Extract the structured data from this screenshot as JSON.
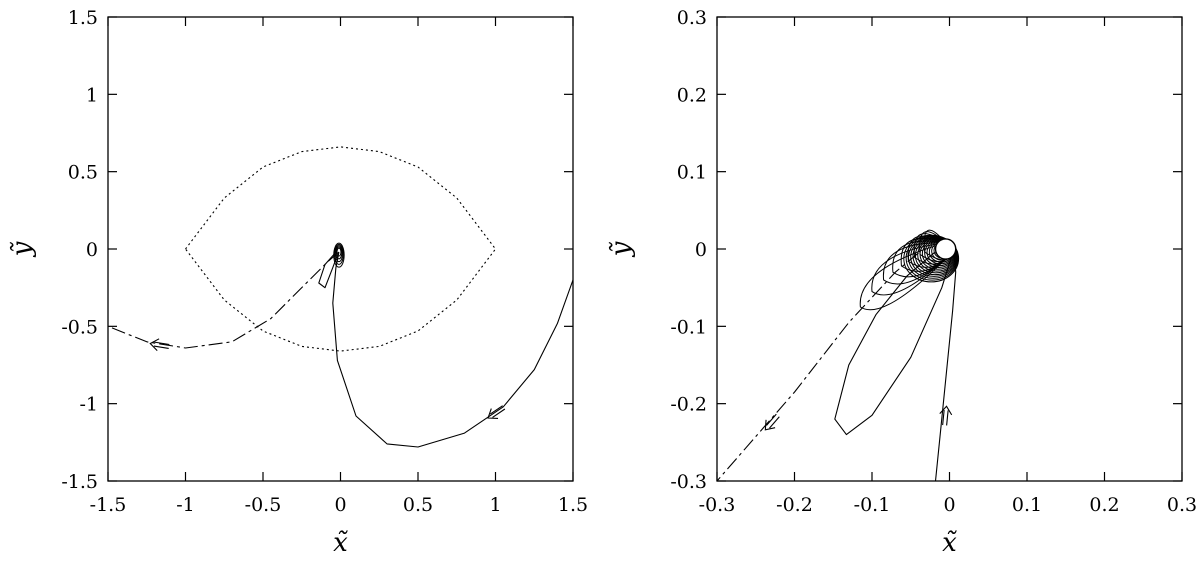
{
  "chart_data": [
    {
      "type": "line",
      "panel": "left",
      "xlabel": "x̃",
      "ylabel": "ỹ",
      "xlim": [
        -1.5,
        1.5
      ],
      "ylim": [
        -1.5,
        1.5
      ],
      "x_ticks": [
        -1.5,
        -1,
        -0.5,
        0,
        0.5,
        1,
        1.5
      ],
      "y_ticks": [
        -1.5,
        -1,
        -0.5,
        0,
        0.5,
        1,
        1.5
      ],
      "x_tick_labels": [
        "-1.5",
        "-1",
        "-0.5",
        "0",
        "0.5",
        "1",
        "1.5"
      ],
      "y_tick_labels": [
        "-1.5",
        "-1",
        "-0.5",
        "0",
        "0.5",
        "1",
        "1.5"
      ],
      "grid": false,
      "series": [
        {
          "style": "solid",
          "points": [
            [
              1.5,
              -0.2
            ],
            [
              1.4,
              -0.48
            ],
            [
              1.25,
              -0.78
            ],
            [
              1.05,
              -1.02
            ],
            [
              0.8,
              -1.19
            ],
            [
              0.5,
              -1.28
            ],
            [
              0.3,
              -1.26
            ],
            [
              0.1,
              -1.08
            ],
            [
              -0.02,
              -0.72
            ],
            [
              -0.05,
              -0.35
            ],
            [
              -0.03,
              -0.12
            ],
            [
              -0.01,
              -0.02
            ]
          ],
          "arrow": {
            "at": [
              1.0,
              -1.06
            ],
            "direction": "inward"
          }
        },
        {
          "style": "dashed",
          "points": [
            [
              -0.01,
              -0.02
            ],
            [
              -0.08,
              -0.08
            ],
            [
              -0.22,
              -0.22
            ],
            [
              -0.45,
              -0.45
            ],
            [
              -0.7,
              -0.6
            ],
            [
              -1.0,
              -0.64
            ],
            [
              -1.25,
              -0.6
            ],
            [
              -1.5,
              -0.5
            ]
          ],
          "arrow": {
            "at": [
              -1.17,
              -0.62
            ],
            "direction": "outward"
          }
        },
        {
          "style": "solid",
          "points": [
            [
              -0.02,
              -0.01
            ],
            [
              -0.1,
              -0.1
            ],
            [
              -0.14,
              -0.22
            ],
            [
              -0.1,
              -0.25
            ],
            [
              -0.05,
              -0.12
            ],
            [
              -0.02,
              -0.04
            ]
          ]
        },
        {
          "style": "dotted",
          "points": [
            [
              -1,
              0
            ],
            [
              -0.75,
              0.33
            ],
            [
              -0.5,
              0.53
            ],
            [
              -0.25,
              0.63
            ],
            [
              0,
              0.66
            ],
            [
              0.25,
              0.63
            ],
            [
              0.5,
              0.53
            ],
            [
              0.75,
              0.33
            ],
            [
              1,
              0
            ],
            [
              0.75,
              -0.33
            ],
            [
              0.5,
              -0.53
            ],
            [
              0.25,
              -0.63
            ],
            [
              0,
              -0.66
            ],
            [
              -0.25,
              -0.63
            ],
            [
              -0.5,
              -0.53
            ],
            [
              -0.75,
              -0.33
            ],
            [
              -1,
              0
            ]
          ]
        }
      ]
    },
    {
      "type": "line",
      "panel": "right",
      "xlabel": "x̃",
      "ylabel": "ỹ",
      "xlim": [
        -0.3,
        0.3
      ],
      "ylim": [
        -0.3,
        0.3
      ],
      "x_ticks": [
        -0.3,
        -0.2,
        -0.1,
        0,
        0.1,
        0.2,
        0.3
      ],
      "y_ticks": [
        -0.3,
        -0.2,
        -0.1,
        0,
        0.1,
        0.2,
        0.3
      ],
      "x_tick_labels": [
        "-0.3",
        "-0.2",
        "-0.1",
        "0",
        "0.1",
        "0.2",
        "0.3"
      ],
      "y_tick_labels": [
        "-0.3",
        "-0.2",
        "-0.1",
        "0",
        "0.1",
        "0.2",
        "0.3"
      ],
      "grid": false,
      "series": [
        {
          "style": "solid",
          "points": [
            [
              -0.018,
              -0.3
            ],
            [
              -0.012,
              -0.24
            ],
            [
              -0.004,
              -0.16
            ],
            [
              0.004,
              -0.08
            ],
            [
              0.008,
              -0.03
            ],
            [
              0.006,
              -0.005
            ]
          ],
          "arrow": {
            "at": [
              -0.005,
              -0.215
            ],
            "direction": "inward"
          }
        },
        {
          "style": "dashed",
          "points": [
            [
              -0.04,
              -0.005
            ],
            [
              -0.07,
              -0.03
            ],
            [
              -0.13,
              -0.095
            ],
            [
              -0.2,
              -0.185
            ],
            [
              -0.3,
              -0.3
            ]
          ],
          "arrow": {
            "at": [
              -0.23,
              -0.225
            ],
            "direction": "outward"
          }
        },
        {
          "style": "solid",
          "points": [
            [
              0.004,
              -0.005
            ],
            [
              -0.01,
              -0.05
            ],
            [
              -0.05,
              -0.14
            ],
            [
              -0.1,
              -0.215
            ],
            [
              -0.133,
              -0.24
            ],
            [
              -0.148,
              -0.22
            ],
            [
              -0.13,
              -0.15
            ],
            [
              -0.095,
              -0.085
            ],
            [
              -0.055,
              -0.035
            ],
            [
              -0.02,
              -0.005
            ],
            [
              0.004,
              -0.005
            ]
          ]
        }
      ],
      "loops": [
        {
          "tip": [
            -0.115,
            -0.075
          ]
        },
        {
          "tip": [
            -0.1,
            -0.055
          ]
        },
        {
          "tip": [
            -0.085,
            -0.04
          ]
        },
        {
          "tip": [
            -0.073,
            -0.03
          ]
        },
        {
          "tip": [
            -0.062,
            -0.022
          ]
        },
        {
          "tip": [
            -0.053,
            -0.016
          ]
        },
        {
          "tip": [
            -0.045,
            -0.011
          ]
        },
        {
          "tip": [
            -0.038,
            -0.007
          ]
        },
        {
          "tip": [
            -0.032,
            -0.004
          ]
        }
      ],
      "filled_disk": {
        "center": [
          -0.005,
          0.0
        ],
        "radius": 0.011
      },
      "hole": {
        "center": [
          -0.005,
          0.0
        ],
        "radius": 0.013
      }
    }
  ]
}
